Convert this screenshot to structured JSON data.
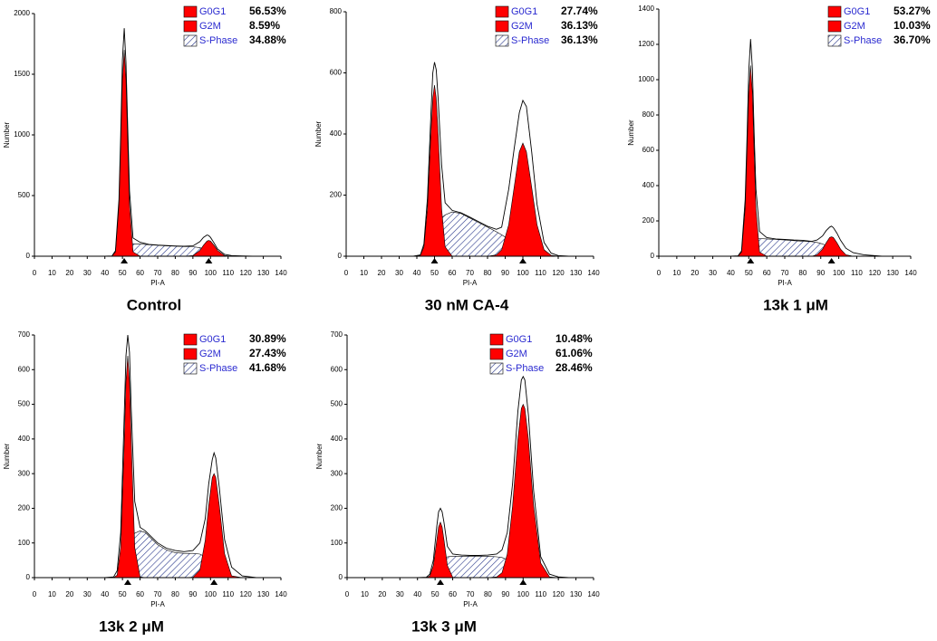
{
  "chart_data": [
    {
      "type": "area",
      "title": "Control",
      "x_label": "PI-A",
      "y_label": "Number",
      "xlim": [
        0,
        140
      ],
      "xticks": [
        0,
        10,
        20,
        30,
        40,
        50,
        60,
        70,
        80,
        90,
        100,
        110,
        120,
        130,
        140
      ],
      "ylim": [
        0,
        2000
      ],
      "yticks": [
        0,
        500,
        1000,
        1500,
        2000
      ],
      "x": [
        40,
        44,
        46,
        48,
        49,
        50,
        51,
        52,
        53,
        54,
        56,
        60,
        65,
        70,
        75,
        80,
        85,
        90,
        94,
        96,
        98,
        99,
        100,
        102,
        104,
        108,
        112,
        118,
        124
      ],
      "series": [
        {
          "name": "G0G1",
          "percent": "56.53%",
          "color": "#ff0000",
          "values": [
            0,
            1,
            36,
            424,
            917,
            1457,
            1700,
            1457,
            917,
            424,
            36,
            0,
            0,
            0,
            0,
            0,
            0,
            0,
            0,
            0,
            0,
            0,
            0,
            0,
            0,
            0,
            0,
            0,
            0
          ]
        },
        {
          "name": "G2M",
          "percent": "8.59%",
          "color": "#ff0000",
          "values": [
            0,
            0,
            0,
            0,
            0,
            0,
            0,
            0,
            0,
            0,
            0,
            0,
            0,
            0,
            0,
            0,
            0,
            5,
            47,
            90,
            125,
            130,
            125,
            90,
            47,
            5,
            0,
            0,
            0
          ]
        },
        {
          "name": "S-Phase",
          "percent": "34.88%",
          "color": "#2b3a8c",
          "pattern": "hatch",
          "values": [
            0,
            0,
            5,
            30,
            50,
            70,
            85,
            100,
            105,
            105,
            103,
            100,
            95,
            90,
            85,
            82,
            80,
            78,
            70,
            60,
            45,
            35,
            25,
            12,
            5,
            0,
            0,
            0,
            0
          ]
        },
        {
          "color": "#000000",
          "values": [
            0,
            2,
            45,
            470,
            1000,
            1620,
            1880,
            1600,
            1050,
            540,
            150,
            115,
            98,
            92,
            88,
            84,
            82,
            85,
            120,
            155,
            175,
            170,
            155,
            110,
            60,
            15,
            5,
            2,
            0
          ]
        }
      ]
    },
    {
      "type": "area",
      "title": "30 nM CA-4",
      "x_label": "PI-A",
      "y_label": "Number",
      "xlim": [
        0,
        140
      ],
      "xticks": [
        0,
        10,
        20,
        30,
        40,
        50,
        60,
        70,
        80,
        90,
        100,
        110,
        120,
        130,
        140
      ],
      "ylim": [
        0,
        800
      ],
      "yticks": [
        0,
        200,
        400,
        600,
        800
      ],
      "x": [
        38,
        42,
        44,
        46,
        48,
        49,
        50,
        51,
        52,
        54,
        56,
        60,
        65,
        70,
        75,
        80,
        85,
        88,
        92,
        95,
        98,
        100,
        102,
        105,
        108,
        112,
        116,
        120,
        126
      ],
      "series": [
        {
          "name": "G0G1",
          "percent": "27.74%",
          "color": "#ff0000",
          "values": [
            0,
            3,
            31,
            156,
            407,
            517,
            560,
            517,
            407,
            156,
            31,
            0,
            0,
            0,
            0,
            0,
            0,
            0,
            0,
            0,
            0,
            0,
            0,
            0,
            0,
            0,
            0,
            0,
            0
          ]
        },
        {
          "name": "G2M",
          "percent": "36.13%",
          "color": "#ff0000",
          "values": [
            0,
            0,
            0,
            0,
            0,
            0,
            0,
            0,
            0,
            0,
            0,
            0,
            0,
            0,
            0,
            0,
            4,
            21,
            103,
            224,
            342,
            370,
            342,
            224,
            103,
            21,
            3,
            0,
            0
          ]
        },
        {
          "name": "S-Phase",
          "percent": "36.13%",
          "color": "#2b3a8c",
          "pattern": "hatch",
          "values": [
            0,
            0,
            5,
            20,
            50,
            70,
            85,
            100,
            110,
            125,
            135,
            145,
            140,
            125,
            110,
            95,
            80,
            70,
            55,
            40,
            25,
            15,
            8,
            3,
            0,
            0,
            0,
            0,
            0
          ]
        },
        {
          "color": "#000000",
          "values": [
            0,
            4,
            40,
            190,
            470,
            600,
            635,
            610,
            520,
            300,
            175,
            150,
            142,
            128,
            113,
            98,
            88,
            95,
            220,
            350,
            470,
            510,
            490,
            340,
            170,
            45,
            10,
            2,
            0
          ]
        }
      ]
    },
    {
      "type": "area",
      "title": "13k 1 μM",
      "x_label": "PI-A",
      "y_label": "Number",
      "xlim": [
        0,
        140
      ],
      "xticks": [
        0,
        10,
        20,
        30,
        40,
        50,
        60,
        70,
        80,
        90,
        100,
        110,
        120,
        130,
        140
      ],
      "ylim": [
        0,
        1400
      ],
      "yticks": [
        0,
        200,
        400,
        600,
        800,
        1000,
        1200,
        1400
      ],
      "x": [
        40,
        44,
        46,
        48,
        49,
        50,
        51,
        52,
        53,
        54,
        56,
        60,
        65,
        70,
        75,
        80,
        85,
        88,
        91,
        93,
        95,
        96,
        97,
        99,
        101,
        104,
        108,
        114,
        124
      ],
      "series": [
        {
          "name": "G0G1",
          "percent": "53.27%",
          "color": "#ff0000",
          "values": [
            0,
            1,
            23,
            269,
            583,
            925,
            1080,
            925,
            583,
            269,
            23,
            0,
            0,
            0,
            0,
            0,
            0,
            0,
            0,
            0,
            0,
            0,
            0,
            0,
            0,
            0,
            0,
            0,
            0
          ]
        },
        {
          "name": "G2M",
          "percent": "10.03%",
          "color": "#ff0000",
          "values": [
            0,
            0,
            0,
            0,
            0,
            0,
            0,
            0,
            0,
            0,
            0,
            0,
            0,
            0,
            0,
            0,
            0,
            8,
            40,
            76,
            106,
            110,
            106,
            76,
            40,
            8,
            0,
            0,
            0
          ]
        },
        {
          "name": "S-Phase",
          "percent": "36.70%",
          "color": "#2b3a8c",
          "pattern": "hatch",
          "values": [
            0,
            0,
            5,
            30,
            50,
            70,
            85,
            95,
            100,
            100,
            100,
            98,
            95,
            92,
            88,
            85,
            82,
            78,
            70,
            60,
            45,
            38,
            30,
            18,
            10,
            3,
            0,
            0,
            0
          ]
        },
        {
          "color": "#000000",
          "values": [
            0,
            2,
            30,
            320,
            660,
            1050,
            1230,
            1060,
            700,
            380,
            140,
            105,
            98,
            95,
            92,
            90,
            84,
            92,
            115,
            145,
            165,
            170,
            162,
            130,
            90,
            45,
            20,
            8,
            0
          ]
        }
      ]
    },
    {
      "type": "area",
      "title": "13k 2 μM",
      "x_label": "PI-A",
      "y_label": "Number",
      "xlim": [
        0,
        140
      ],
      "xticks": [
        0,
        10,
        20,
        30,
        40,
        50,
        60,
        70,
        80,
        90,
        100,
        110,
        120,
        130,
        140
      ],
      "ylim": [
        0,
        700
      ],
      "yticks": [
        0,
        100,
        200,
        300,
        400,
        500,
        600,
        700
      ],
      "x": [
        40,
        45,
        47,
        49,
        51,
        52,
        53,
        54,
        55,
        57,
        60,
        63,
        66,
        70,
        75,
        80,
        85,
        90,
        94,
        97,
        99,
        101,
        102,
        103,
        105,
        108,
        112,
        118,
        126
      ],
      "series": [
        {
          "name": "G0G1",
          "percent": "30.89%",
          "color": "#ff0000",
          "values": [
            0,
            0,
            7,
            87,
            388,
            565,
            640,
            565,
            388,
            87,
            2,
            0,
            0,
            0,
            0,
            0,
            0,
            0,
            0,
            0,
            0,
            0,
            0,
            0,
            0,
            0,
            0,
            0,
            0
          ]
        },
        {
          "name": "G2M",
          "percent": "27.43%",
          "color": "#ff0000",
          "values": [
            0,
            0,
            0,
            0,
            0,
            0,
            0,
            0,
            0,
            0,
            0,
            0,
            0,
            0,
            0,
            0,
            0,
            1,
            22,
            108,
            208,
            289,
            300,
            289,
            208,
            69,
            5,
            0,
            0
          ]
        },
        {
          "name": "S-Phase",
          "percent": "41.68%",
          "color": "#2b3a8c",
          "pattern": "hatch",
          "values": [
            0,
            0,
            5,
            30,
            60,
            80,
            95,
            105,
            115,
            128,
            135,
            130,
            115,
            95,
            80,
            72,
            70,
            70,
            68,
            60,
            50,
            38,
            32,
            26,
            15,
            5,
            0,
            0,
            0
          ]
        },
        {
          "color": "#000000",
          "values": [
            0,
            2,
            20,
            130,
            470,
            640,
            700,
            650,
            480,
            220,
            145,
            135,
            120,
            100,
            85,
            78,
            75,
            78,
            100,
            170,
            270,
            340,
            360,
            345,
            260,
            110,
            30,
            5,
            0
          ]
        }
      ]
    },
    {
      "type": "area",
      "title": "13k 3 μM",
      "x_label": "PI-A",
      "y_label": "Number",
      "xlim": [
        0,
        140
      ],
      "xticks": [
        0,
        10,
        20,
        30,
        40,
        50,
        60,
        70,
        80,
        90,
        100,
        110,
        120,
        130,
        140
      ],
      "ylim": [
        0,
        700
      ],
      "yticks": [
        0,
        100,
        200,
        300,
        400,
        500,
        600,
        700
      ],
      "x": [
        40,
        45,
        47,
        49,
        51,
        52,
        53,
        54,
        55,
        57,
        60,
        65,
        70,
        75,
        80,
        85,
        88,
        91,
        94,
        97,
        99,
        100,
        101,
        103,
        106,
        110,
        115,
        120,
        126
      ],
      "series": [
        {
          "name": "G0G1",
          "percent": "10.48%",
          "color": "#ff0000",
          "values": [
            0,
            0,
            5,
            35,
            110,
            146,
            160,
            146,
            110,
            35,
            1,
            0,
            0,
            0,
            0,
            0,
            0,
            0,
            0,
            0,
            0,
            0,
            0,
            0,
            0,
            0,
            0,
            0,
            0
          ]
        },
        {
          "name": "G2M",
          "percent": "61.06%",
          "color": "#ff0000",
          "values": [
            0,
            0,
            0,
            0,
            0,
            0,
            0,
            0,
            0,
            0,
            0,
            0,
            0,
            0,
            0,
            2,
            14,
            68,
            206,
            400,
            488,
            500,
            488,
            400,
            206,
            42,
            2,
            0,
            0
          ]
        },
        {
          "name": "S-Phase",
          "percent": "28.46%",
          "color": "#2b3a8c",
          "pattern": "hatch",
          "values": [
            0,
            0,
            2,
            10,
            25,
            32,
            40,
            48,
            55,
            60,
            62,
            62,
            62,
            62,
            62,
            60,
            58,
            52,
            42,
            28,
            18,
            13,
            9,
            4,
            0,
            0,
            0,
            0,
            0
          ]
        },
        {
          "color": "#000000",
          "values": [
            0,
            1,
            10,
            50,
            150,
            190,
            200,
            190,
            160,
            90,
            68,
            65,
            64,
            64,
            65,
            68,
            80,
            130,
            270,
            480,
            570,
            580,
            570,
            470,
            250,
            60,
            10,
            2,
            0
          ]
        }
      ]
    }
  ]
}
